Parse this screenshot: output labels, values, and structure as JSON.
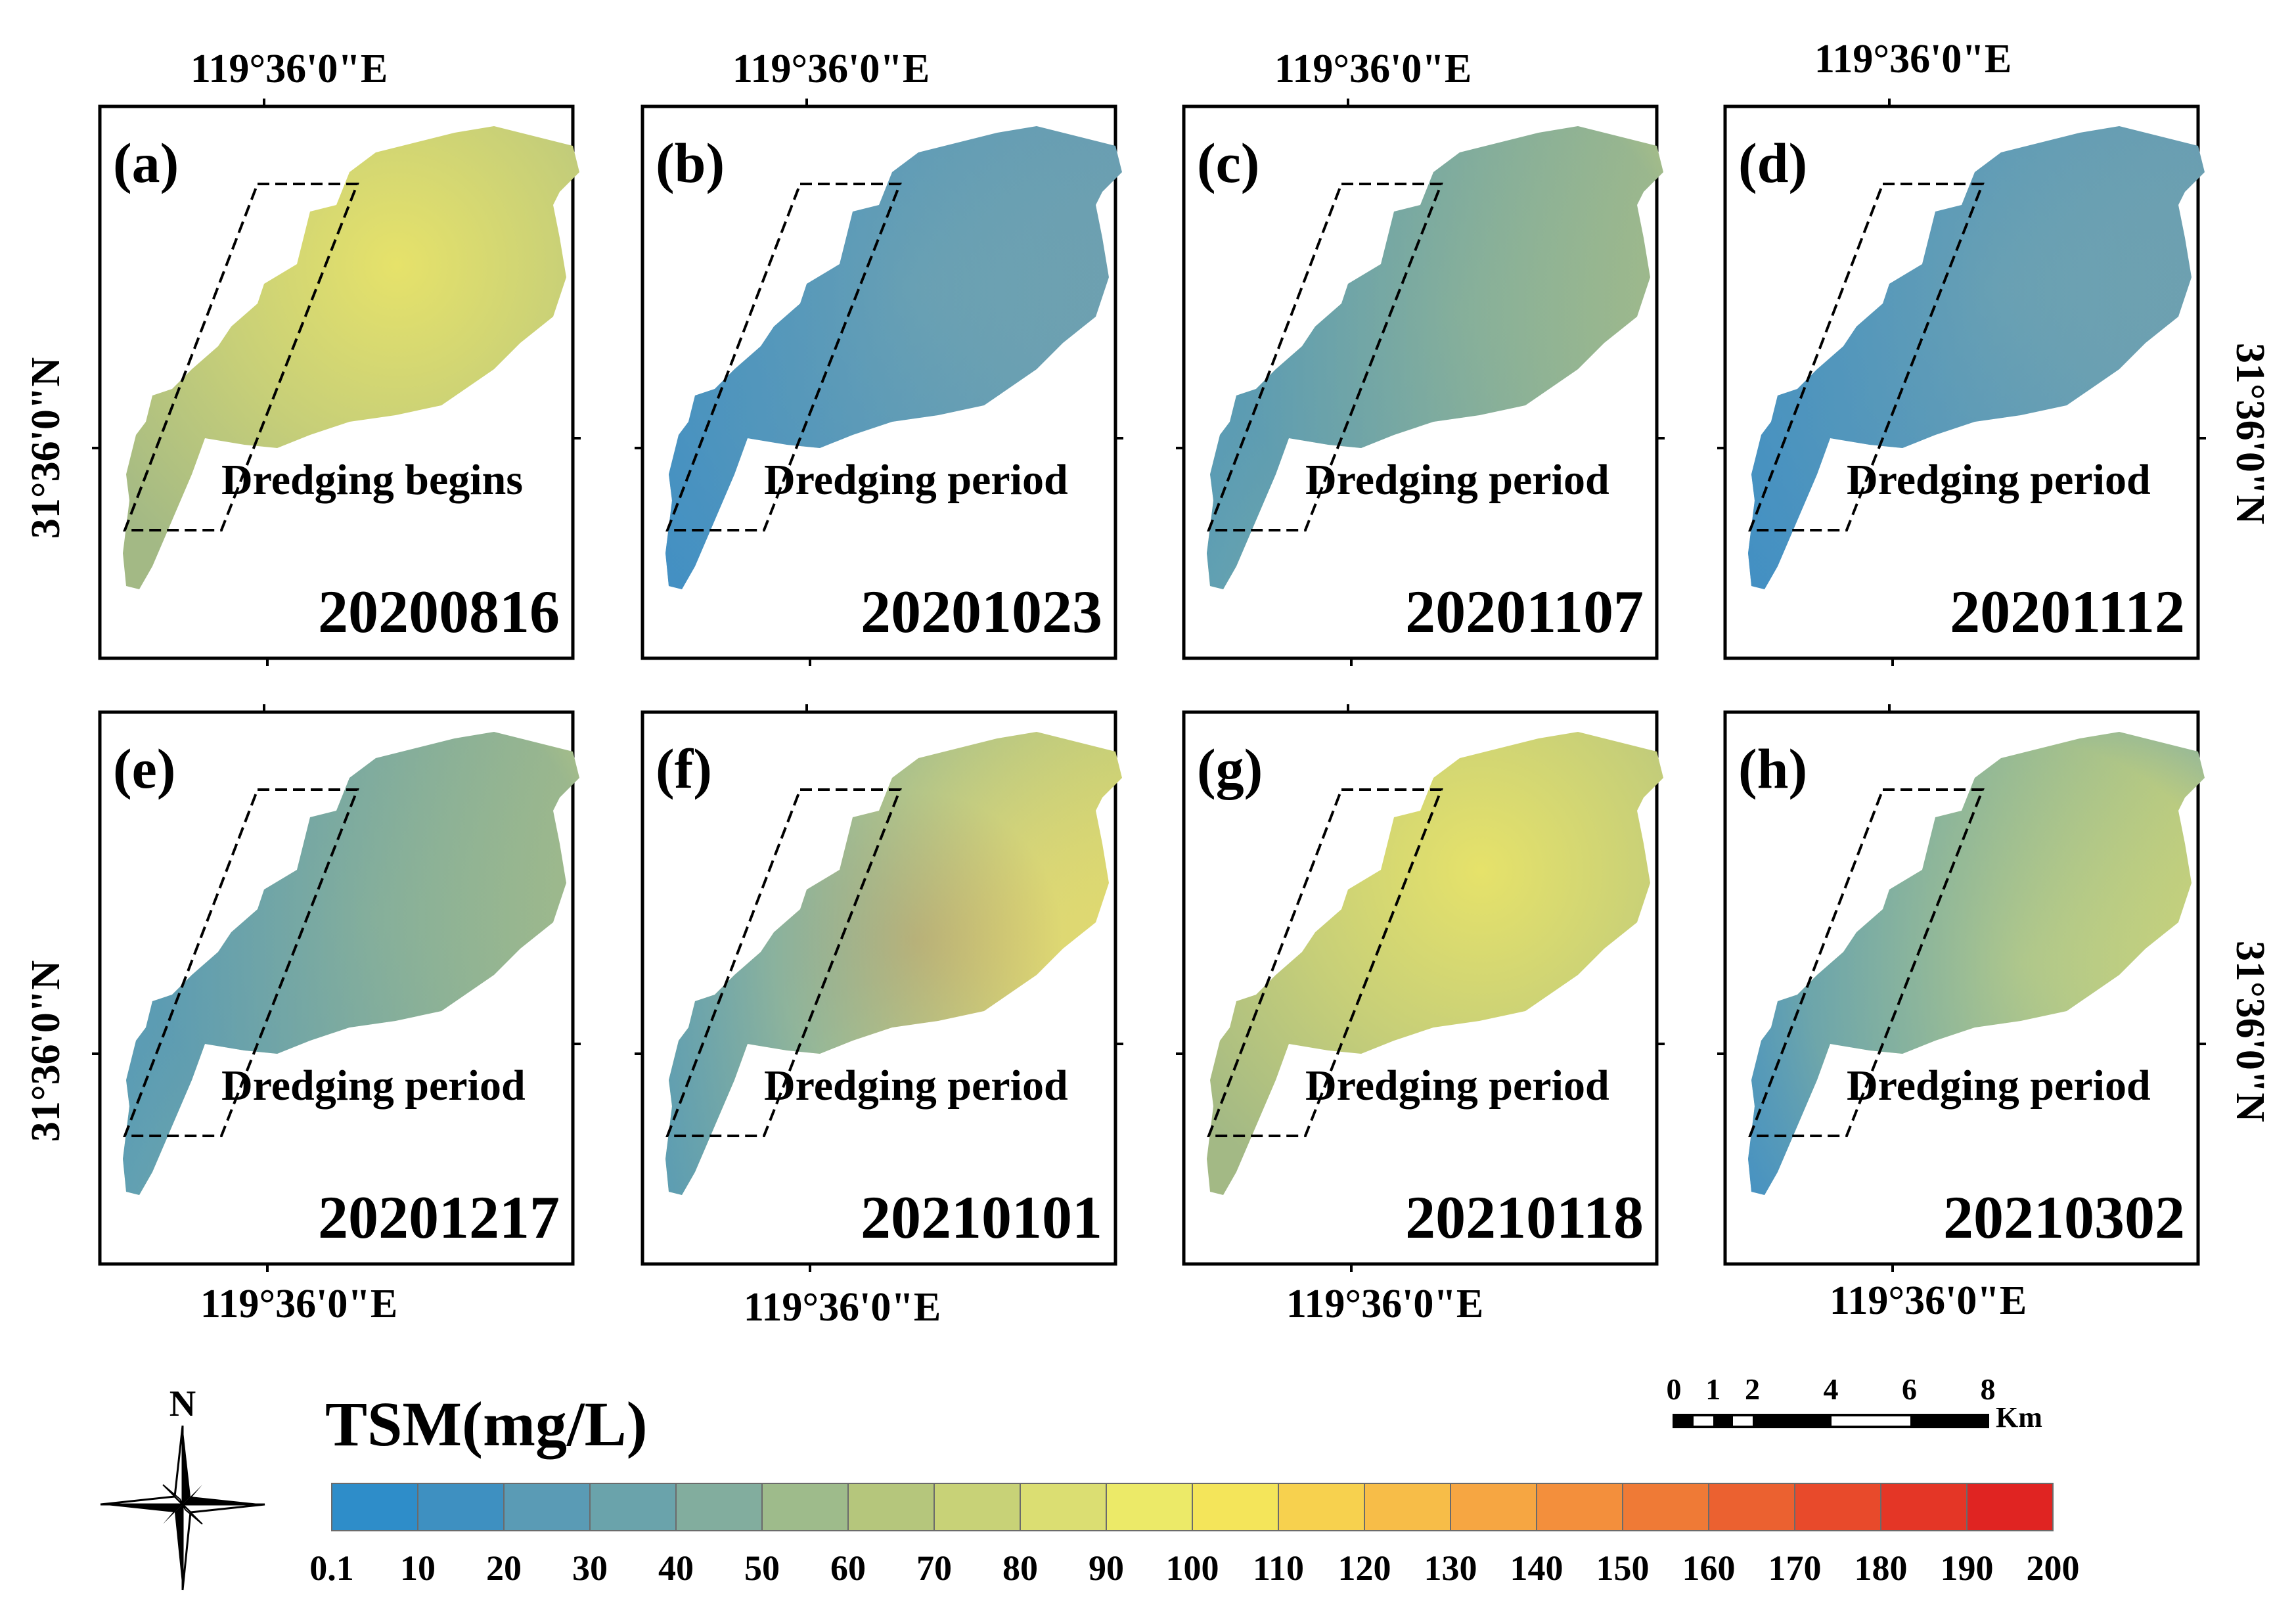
{
  "figure": {
    "lon_label": "119°36'0\"E",
    "lat_label": "31°36'0\"N",
    "panels": [
      {
        "letter": "(a)",
        "date": "20200816",
        "phase": "Dredging begins",
        "tone": "yellow"
      },
      {
        "letter": "(b)",
        "date": "20201023",
        "phase": "Dredging period",
        "tone": "blue"
      },
      {
        "letter": "(c)",
        "date": "20201107",
        "phase": "Dredging period",
        "tone": "green"
      },
      {
        "letter": "(d)",
        "date": "20201112",
        "phase": "Dredging period",
        "tone": "blue"
      },
      {
        "letter": "(e)",
        "date": "20201217",
        "phase": "Dredging period",
        "tone": "green"
      },
      {
        "letter": "(f)",
        "date": "20210101",
        "phase": "Dredging period",
        "tone": "orange"
      },
      {
        "letter": "(g)",
        "date": "20210118",
        "phase": "Dredging period",
        "tone": "yellow"
      },
      {
        "letter": "(h)",
        "date": "20210302",
        "phase": "Dredging period",
        "tone": "mixed"
      }
    ]
  },
  "legend": {
    "title": "TSM(mg/L)",
    "labels": [
      "0.1",
      "10",
      "20",
      "30",
      "40",
      "50",
      "60",
      "70",
      "80",
      "90",
      "100",
      "110",
      "120",
      "130",
      "140",
      "150",
      "160",
      "170",
      "180",
      "190",
      "200"
    ],
    "colors": [
      "#2e8dc9",
      "#3e90c1",
      "#5a9bb5",
      "#6aa3ab",
      "#82ad9e",
      "#9ebb8b",
      "#b5c67c",
      "#c8d277",
      "#dbde72",
      "#ecea68",
      "#f4e55a",
      "#f7d14e",
      "#f7bd48",
      "#f6a642",
      "#f38f3c",
      "#ef7a36",
      "#eb6130",
      "#e84a2b",
      "#e43626",
      "#e02422"
    ]
  },
  "compass": {
    "north": "N"
  },
  "scalebar": {
    "ticks": [
      "0",
      "1",
      "2",
      "4",
      "6",
      "8"
    ],
    "unit": "Km"
  }
}
